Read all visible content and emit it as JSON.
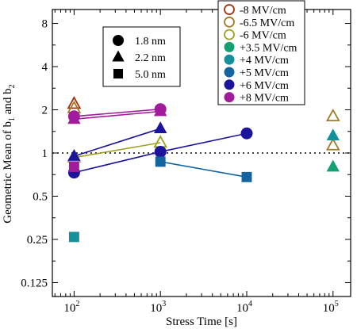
{
  "chart_data": {
    "type": "scatter",
    "xlabel": "Stress Time [s]",
    "ylabel": "Geometric Mean of b1 and b2",
    "ylabel_parts": {
      "pre": "Geometric Mean of b",
      "sub1": "1",
      "mid": " and b",
      "sub2": "2"
    },
    "x_scale": "log",
    "y_scale": "log",
    "xlim": [
      56,
      160000
    ],
    "ylim": [
      0.1,
      10
    ],
    "x_ticks": [
      {
        "value": 100,
        "base": "10",
        "exp": "2"
      },
      {
        "value": 1000,
        "base": "10",
        "exp": "3"
      },
      {
        "value": 10000,
        "base": "10",
        "exp": "4"
      },
      {
        "value": 100000,
        "base": "10",
        "exp": "5"
      }
    ],
    "y_ticks": [
      {
        "value": 0.125,
        "label": "0.125"
      },
      {
        "value": 0.25,
        "label": "0.25"
      },
      {
        "value": 0.5,
        "label": "0.5"
      },
      {
        "value": 1,
        "label": "1"
      },
      {
        "value": 2,
        "label": "2"
      },
      {
        "value": 4,
        "label": "4"
      },
      {
        "value": 8,
        "label": "8"
      }
    ],
    "reference_line": {
      "y": 1,
      "style": "dotted"
    },
    "marker_legend": {
      "position": "top-left",
      "entries": [
        {
          "marker": "circle",
          "label": "1.8 nm"
        },
        {
          "marker": "triangle",
          "label": "2.2 nm"
        },
        {
          "marker": "square",
          "label": "5.0 nm"
        }
      ]
    },
    "color_legend": {
      "position": "top-right",
      "entries": [
        {
          "label": "-8 MV/cm",
          "color": "#a0300c",
          "style": "open"
        },
        {
          "label": "-6.5 MV/cm",
          "color": "#a07a28",
          "style": "open"
        },
        {
          "label": "-6 MV/cm",
          "color": "#a0a020",
          "style": "open"
        },
        {
          "label": "+3.5 MV/cm",
          "color": "#14a070",
          "style": "filled"
        },
        {
          "label": "+4 MV/cm",
          "color": "#14909c",
          "style": "filled"
        },
        {
          "label": "+5 MV/cm",
          "color": "#1464a0",
          "style": "filled"
        },
        {
          "label": "+6 MV/cm",
          "color": "#1c149c",
          "style": "filled"
        },
        {
          "label": "+8 MV/cm",
          "color": "#a01c9c",
          "style": "filled"
        }
      ]
    },
    "series": [
      {
        "field": "-8 MV/cm",
        "thickness": "2.2 nm",
        "color": "#a0300c",
        "open": true,
        "marker": "triangle",
        "points": [
          [
            100,
            2.2
          ]
        ],
        "connected": false
      },
      {
        "field": "-6.5 MV/cm",
        "thickness": "2.2 nm",
        "color": "#a07a28",
        "open": true,
        "marker": "triangle",
        "points": [
          [
            100,
            2.05
          ],
          [
            100000,
            1.8
          ]
        ],
        "connected": false
      },
      {
        "field": "-6 MV/cm",
        "thickness": "2.2 nm",
        "color": "#a0a020",
        "open": true,
        "marker": "triangle",
        "points": [
          [
            100,
            0.93
          ],
          [
            1000,
            1.18
          ]
        ],
        "connected": true
      },
      {
        "field": "-6.5 MV/cm",
        "thickness": "2.2 nm (second)",
        "color": "#a07a28",
        "open": true,
        "marker": "triangle",
        "points": [
          [
            100000,
            1.13
          ]
        ],
        "connected": false
      },
      {
        "field": "+8 MV/cm",
        "thickness": "1.8 nm",
        "color": "#a01c9c",
        "open": false,
        "marker": "circle",
        "points": [
          [
            100,
            1.8
          ],
          [
            1000,
            2.02
          ]
        ],
        "connected": true
      },
      {
        "field": "+8 MV/cm",
        "thickness": "2.2 nm",
        "color": "#a01c9c",
        "open": false,
        "marker": "triangle",
        "points": [
          [
            100,
            1.72
          ],
          [
            1000,
            1.95
          ]
        ],
        "connected": true
      },
      {
        "field": "+6 MV/cm",
        "thickness": "2.2 nm",
        "color": "#1c149c",
        "open": false,
        "marker": "triangle",
        "points": [
          [
            100,
            0.95
          ],
          [
            1000,
            1.48
          ]
        ],
        "connected": true
      },
      {
        "field": "+6 MV/cm",
        "thickness": "1.8 nm",
        "color": "#1c149c",
        "open": false,
        "marker": "circle",
        "points": [
          [
            100,
            0.73
          ],
          [
            1000,
            1.02
          ],
          [
            10000,
            1.37
          ]
        ],
        "connected": true
      },
      {
        "field": "+8 MV/cm",
        "thickness": "5.0 nm",
        "color": "#a01c9c",
        "open": false,
        "marker": "square",
        "points": [
          [
            100,
            0.8
          ]
        ],
        "connected": false
      },
      {
        "field": "+5 MV/cm",
        "thickness": "5.0 nm",
        "color": "#1464a0",
        "open": false,
        "marker": "square",
        "points": [
          [
            1000,
            0.87
          ],
          [
            10000,
            0.68
          ]
        ],
        "connected": true
      },
      {
        "field": "+4 MV/cm",
        "thickness": "5.0 nm",
        "color": "#14909c",
        "open": false,
        "marker": "square",
        "points": [
          [
            100,
            0.26
          ]
        ],
        "connected": false
      },
      {
        "field": "+4 MV/cm",
        "thickness": "2.2 nm",
        "color": "#14909c",
        "open": false,
        "marker": "triangle",
        "points": [
          [
            100000,
            1.32
          ]
        ],
        "connected": false
      },
      {
        "field": "+3.5 MV/cm",
        "thickness": "2.2 nm",
        "color": "#14a070",
        "open": false,
        "marker": "triangle",
        "points": [
          [
            100000,
            0.8
          ]
        ],
        "connected": false
      }
    ]
  }
}
